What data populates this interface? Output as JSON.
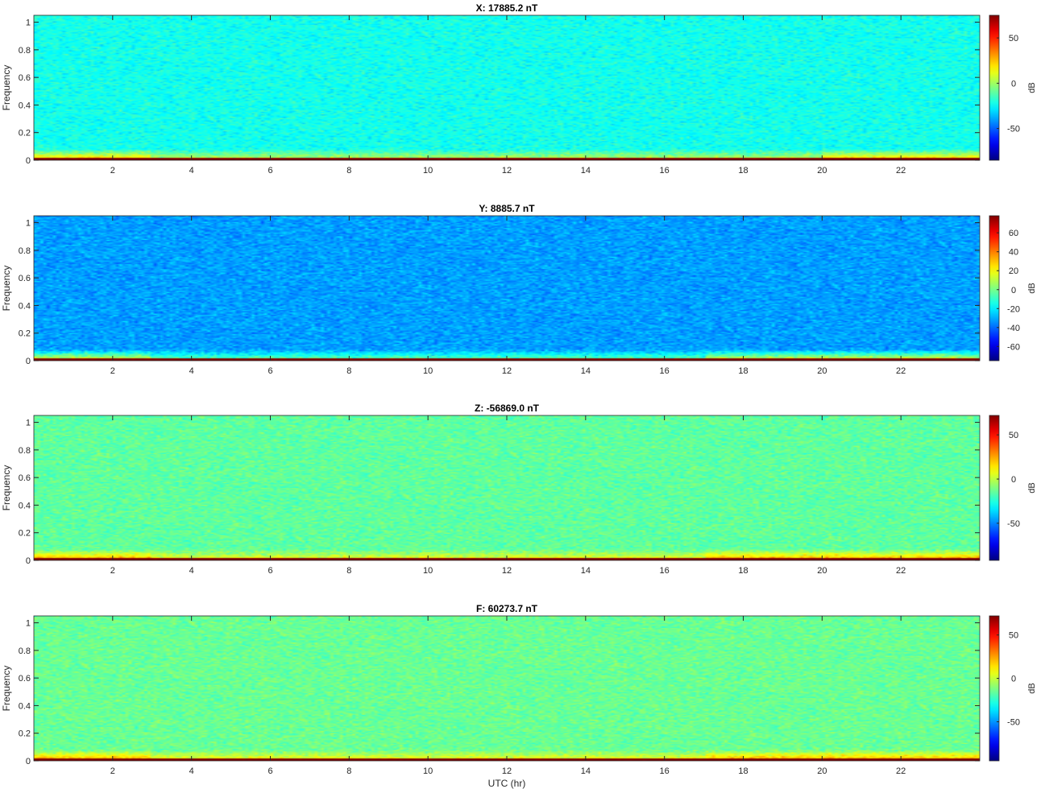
{
  "figure": {
    "xlabel": "UTC (hr)"
  },
  "chart_data": [
    {
      "type": "heatmap",
      "title": "X: 17885.2 nT",
      "xlabel": "",
      "ylabel": "Frequency",
      "xlim": [
        0,
        24
      ],
      "ylim": [
        0,
        1.05
      ],
      "xticks": [
        2,
        4,
        6,
        8,
        10,
        12,
        14,
        16,
        18,
        20,
        22
      ],
      "yticks": [
        0,
        0.2,
        0.4,
        0.6,
        0.8,
        1
      ],
      "colorbar": {
        "label": "dB",
        "colormap": "jet",
        "clim": [
          -85,
          75
        ],
        "ticks": [
          -50,
          0,
          50
        ]
      },
      "approx_levels": {
        "background_db": -22,
        "low_band_db": 30,
        "dc_line_db": 75
      }
    },
    {
      "type": "heatmap",
      "title": "Y: 8885.7 nT",
      "xlabel": "",
      "ylabel": "Frequency",
      "xlim": [
        0,
        24
      ],
      "ylim": [
        0,
        1.05
      ],
      "xticks": [
        2,
        4,
        6,
        8,
        10,
        12,
        14,
        16,
        18,
        20,
        22
      ],
      "yticks": [
        0,
        0.2,
        0.4,
        0.6,
        0.8,
        1
      ],
      "colorbar": {
        "label": "dB",
        "colormap": "jet",
        "clim": [
          -75,
          78
        ],
        "ticks": [
          -60,
          -40,
          -20,
          0,
          20,
          40,
          60
        ]
      },
      "approx_levels": {
        "background_db": -32,
        "low_band_db": 25,
        "dc_line_db": 78
      }
    },
    {
      "type": "heatmap",
      "title": "Z: -56869.0 nT",
      "xlabel": "",
      "ylabel": "Frequency",
      "xlim": [
        0,
        24
      ],
      "ylim": [
        0,
        1.05
      ],
      "xticks": [
        2,
        4,
        6,
        8,
        10,
        12,
        14,
        16,
        18,
        20,
        22
      ],
      "yticks": [
        0,
        0.2,
        0.4,
        0.6,
        0.8,
        1
      ],
      "colorbar": {
        "label": "dB",
        "colormap": "jet",
        "clim": [
          -92,
          72
        ],
        "ticks": [
          -50,
          0,
          50
        ]
      },
      "approx_levels": {
        "background_db": -15,
        "low_band_db": 30,
        "dc_line_db": 72
      }
    },
    {
      "type": "heatmap",
      "title": "F: 60273.7 nT",
      "xlabel": "UTC (hr)",
      "ylabel": "Frequency",
      "xlim": [
        0,
        24
      ],
      "ylim": [
        0,
        1.05
      ],
      "xticks": [
        2,
        4,
        6,
        8,
        10,
        12,
        14,
        16,
        18,
        20,
        22
      ],
      "yticks": [
        0,
        0.2,
        0.4,
        0.6,
        0.8,
        1
      ],
      "colorbar": {
        "label": "dB",
        "colormap": "jet",
        "clim": [
          -95,
          72
        ],
        "ticks": [
          -50,
          0,
          50
        ]
      },
      "approx_levels": {
        "background_db": -15,
        "low_band_db": 30,
        "dc_line_db": 72
      }
    }
  ]
}
